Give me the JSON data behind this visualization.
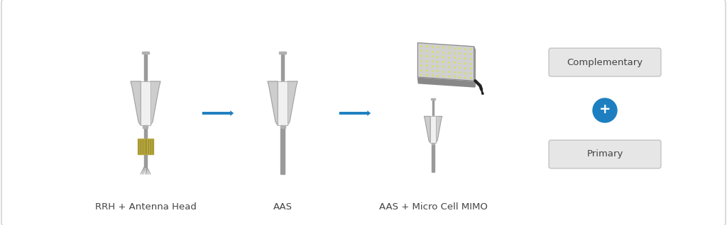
{
  "bg_color": "#ffffff",
  "border_color": "#cccccc",
  "arrow_color": "#1e7fc0",
  "label_color": "#444444",
  "labels": {
    "rrh": "RRH + Antenna Head",
    "aas": "AAS",
    "aas_micro": "AAS + Micro Cell MIMO",
    "complementary": "Complementary",
    "primary": "Primary",
    "plus": "+"
  },
  "label_fontsize": 9.5,
  "badge_fontsize": 9.5,
  "plus_fontsize": 14,
  "fig_width": 10.24,
  "fig_height": 3.18
}
